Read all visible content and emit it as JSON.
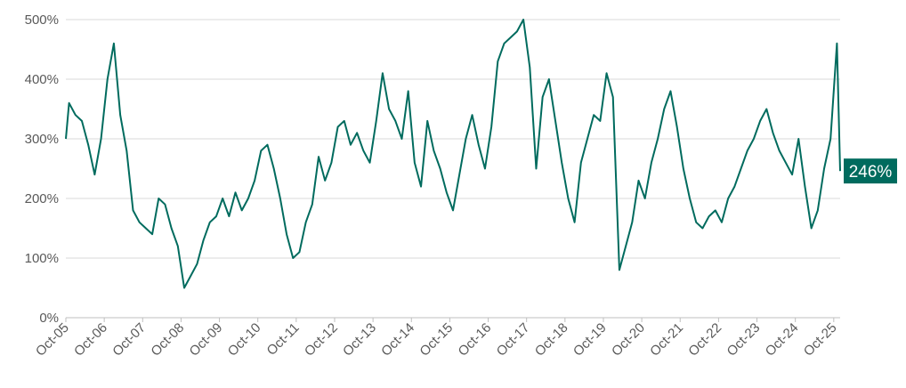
{
  "chart_data": {
    "type": "line",
    "title": "",
    "xlabel": "",
    "ylabel": "",
    "ylim": [
      0,
      500
    ],
    "y_ticks": [
      "0%",
      "100%",
      "200%",
      "300%",
      "400%",
      "500%"
    ],
    "x_ticks": [
      "Oct-05",
      "Oct-06",
      "Oct-07",
      "Oct-08",
      "Oct-09",
      "Oct-10",
      "Oct-11",
      "Oct-12",
      "Oct-13",
      "Oct-14",
      "Oct-15",
      "Oct-16",
      "Oct-17",
      "Oct-18",
      "Oct-19",
      "Oct-20",
      "Oct-21",
      "Oct-22",
      "Oct-23",
      "Oct-24",
      "Oct-25"
    ],
    "x_range": [
      "2005-10",
      "2025-12"
    ],
    "grid": true,
    "line_color": "#006b5e",
    "end_label": "246%",
    "series": [
      {
        "values": [
          [
            "2005-10",
            300
          ],
          [
            "2005-11",
            360
          ],
          [
            "2006-01",
            340
          ],
          [
            "2006-03",
            330
          ],
          [
            "2006-05",
            290
          ],
          [
            "2006-07",
            240
          ],
          [
            "2006-09",
            300
          ],
          [
            "2006-11",
            400
          ],
          [
            "2007-01",
            460
          ],
          [
            "2007-03",
            340
          ],
          [
            "2007-05",
            280
          ],
          [
            "2007-07",
            180
          ],
          [
            "2007-09",
            160
          ],
          [
            "2007-11",
            150
          ],
          [
            "2008-01",
            140
          ],
          [
            "2008-03",
            200
          ],
          [
            "2008-05",
            190
          ],
          [
            "2008-07",
            150
          ],
          [
            "2008-09",
            120
          ],
          [
            "2008-11",
            50
          ],
          [
            "2009-01",
            70
          ],
          [
            "2009-03",
            90
          ],
          [
            "2009-05",
            130
          ],
          [
            "2009-07",
            160
          ],
          [
            "2009-09",
            170
          ],
          [
            "2009-11",
            200
          ],
          [
            "2010-01",
            170
          ],
          [
            "2010-03",
            210
          ],
          [
            "2010-05",
            180
          ],
          [
            "2010-07",
            200
          ],
          [
            "2010-09",
            230
          ],
          [
            "2010-11",
            280
          ],
          [
            "2011-01",
            290
          ],
          [
            "2011-03",
            250
          ],
          [
            "2011-05",
            200
          ],
          [
            "2011-07",
            140
          ],
          [
            "2011-09",
            100
          ],
          [
            "2011-11",
            110
          ],
          [
            "2012-01",
            160
          ],
          [
            "2012-03",
            190
          ],
          [
            "2012-05",
            270
          ],
          [
            "2012-07",
            230
          ],
          [
            "2012-09",
            260
          ],
          [
            "2012-11",
            320
          ],
          [
            "2013-01",
            330
          ],
          [
            "2013-03",
            290
          ],
          [
            "2013-05",
            310
          ],
          [
            "2013-07",
            280
          ],
          [
            "2013-09",
            260
          ],
          [
            "2013-11",
            330
          ],
          [
            "2014-01",
            410
          ],
          [
            "2014-03",
            350
          ],
          [
            "2014-05",
            330
          ],
          [
            "2014-07",
            300
          ],
          [
            "2014-09",
            380
          ],
          [
            "2014-11",
            260
          ],
          [
            "2015-01",
            220
          ],
          [
            "2015-03",
            330
          ],
          [
            "2015-05",
            280
          ],
          [
            "2015-07",
            250
          ],
          [
            "2015-09",
            210
          ],
          [
            "2015-11",
            180
          ],
          [
            "2016-01",
            240
          ],
          [
            "2016-03",
            300
          ],
          [
            "2016-05",
            340
          ],
          [
            "2016-07",
            290
          ],
          [
            "2016-09",
            250
          ],
          [
            "2016-11",
            320
          ],
          [
            "2017-01",
            430
          ],
          [
            "2017-03",
            460
          ],
          [
            "2017-05",
            470
          ],
          [
            "2017-07",
            480
          ],
          [
            "2017-09",
            500
          ],
          [
            "2017-11",
            420
          ],
          [
            "2018-01",
            250
          ],
          [
            "2018-03",
            370
          ],
          [
            "2018-05",
            400
          ],
          [
            "2018-07",
            330
          ],
          [
            "2018-09",
            260
          ],
          [
            "2018-11",
            200
          ],
          [
            "2019-01",
            160
          ],
          [
            "2019-03",
            260
          ],
          [
            "2019-05",
            300
          ],
          [
            "2019-07",
            340
          ],
          [
            "2019-09",
            330
          ],
          [
            "2019-11",
            410
          ],
          [
            "2020-01",
            370
          ],
          [
            "2020-03",
            80
          ],
          [
            "2020-05",
            120
          ],
          [
            "2020-07",
            160
          ],
          [
            "2020-09",
            230
          ],
          [
            "2020-11",
            200
          ],
          [
            "2021-01",
            260
          ],
          [
            "2021-03",
            300
          ],
          [
            "2021-05",
            350
          ],
          [
            "2021-07",
            380
          ],
          [
            "2021-09",
            320
          ],
          [
            "2021-11",
            250
          ],
          [
            "2022-01",
            200
          ],
          [
            "2022-03",
            160
          ],
          [
            "2022-05",
            150
          ],
          [
            "2022-07",
            170
          ],
          [
            "2022-09",
            180
          ],
          [
            "2022-11",
            160
          ],
          [
            "2023-01",
            200
          ],
          [
            "2023-03",
            220
          ],
          [
            "2023-05",
            250
          ],
          [
            "2023-07",
            280
          ],
          [
            "2023-09",
            300
          ],
          [
            "2023-11",
            330
          ],
          [
            "2024-01",
            350
          ],
          [
            "2024-03",
            310
          ],
          [
            "2024-05",
            280
          ],
          [
            "2024-07",
            260
          ],
          [
            "2024-09",
            240
          ],
          [
            "2024-11",
            300
          ],
          [
            "2025-01",
            220
          ],
          [
            "2025-03",
            150
          ],
          [
            "2025-05",
            180
          ],
          [
            "2025-07",
            250
          ],
          [
            "2025-09",
            300
          ],
          [
            "2025-11",
            460
          ],
          [
            "2025-12",
            246
          ]
        ]
      }
    ]
  }
}
